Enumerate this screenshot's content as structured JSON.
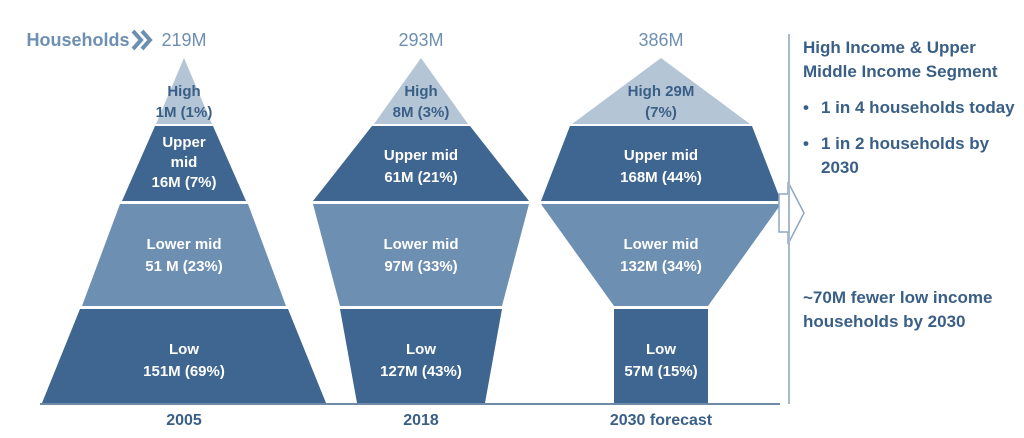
{
  "chart_data": {
    "type": "stacked-funnel",
    "households_label": "Households",
    "columns": [
      {
        "year": "2005",
        "total": "219M",
        "segments": [
          {
            "name": "Low",
            "value_m": 151,
            "share_pct": 69,
            "label_lines": [
              "Low",
              "151M (69%)"
            ]
          },
          {
            "name": "Lower mid",
            "value_m": 51,
            "share_pct": 23,
            "label_lines": [
              "Lower mid",
              "51 M (23%)"
            ]
          },
          {
            "name": "Upper mid",
            "value_m": 16,
            "share_pct": 7,
            "label_lines": [
              "Upper",
              "mid",
              "16M (7%)"
            ]
          },
          {
            "name": "High",
            "value_m": 1,
            "share_pct": 1,
            "label_lines": [
              "High",
              "1M (1%)"
            ]
          }
        ]
      },
      {
        "year": "2018",
        "total": "293M",
        "segments": [
          {
            "name": "Low",
            "value_m": 127,
            "share_pct": 43,
            "label_lines": [
              "Low",
              "127M (43%)"
            ]
          },
          {
            "name": "Lower mid",
            "value_m": 97,
            "share_pct": 33,
            "label_lines": [
              "Lower mid",
              "97M (33%)"
            ]
          },
          {
            "name": "Upper mid",
            "value_m": 61,
            "share_pct": 21,
            "label_lines": [
              "Upper mid",
              "61M (21%)"
            ]
          },
          {
            "name": "High",
            "value_m": 8,
            "share_pct": 3,
            "label_lines": [
              "High",
              "8M (3%)"
            ]
          }
        ]
      },
      {
        "year": "2030 forecast",
        "total": "386M",
        "segments": [
          {
            "name": "Low",
            "value_m": 57,
            "share_pct": 15,
            "label_lines": [
              "Low",
              "57M (15%)"
            ]
          },
          {
            "name": "Lower mid",
            "value_m": 132,
            "share_pct": 34,
            "label_lines": [
              "Lower mid",
              "132M (34%)"
            ]
          },
          {
            "name": "Upper mid",
            "value_m": 168,
            "share_pct": 44,
            "label_lines": [
              "Upper mid",
              "168M (44%)"
            ]
          },
          {
            "name": "High",
            "value_m": 29,
            "share_pct": 7,
            "label_lines": [
              "High 29M",
              "(7%)"
            ]
          }
        ]
      }
    ],
    "colors": {
      "Low": "#3e6690",
      "Lower mid": "#6d8fb2",
      "Upper mid": "#3e6690",
      "High": "#b4c5d6",
      "text": "#3a5f86"
    }
  },
  "sidebar": {
    "heading": "High Income & Upper Middle Income Segment",
    "bullets": [
      "1 in 4 households today",
      "1 in 2 households by 2030"
    ],
    "note": "~70M fewer low income households by 2030"
  }
}
